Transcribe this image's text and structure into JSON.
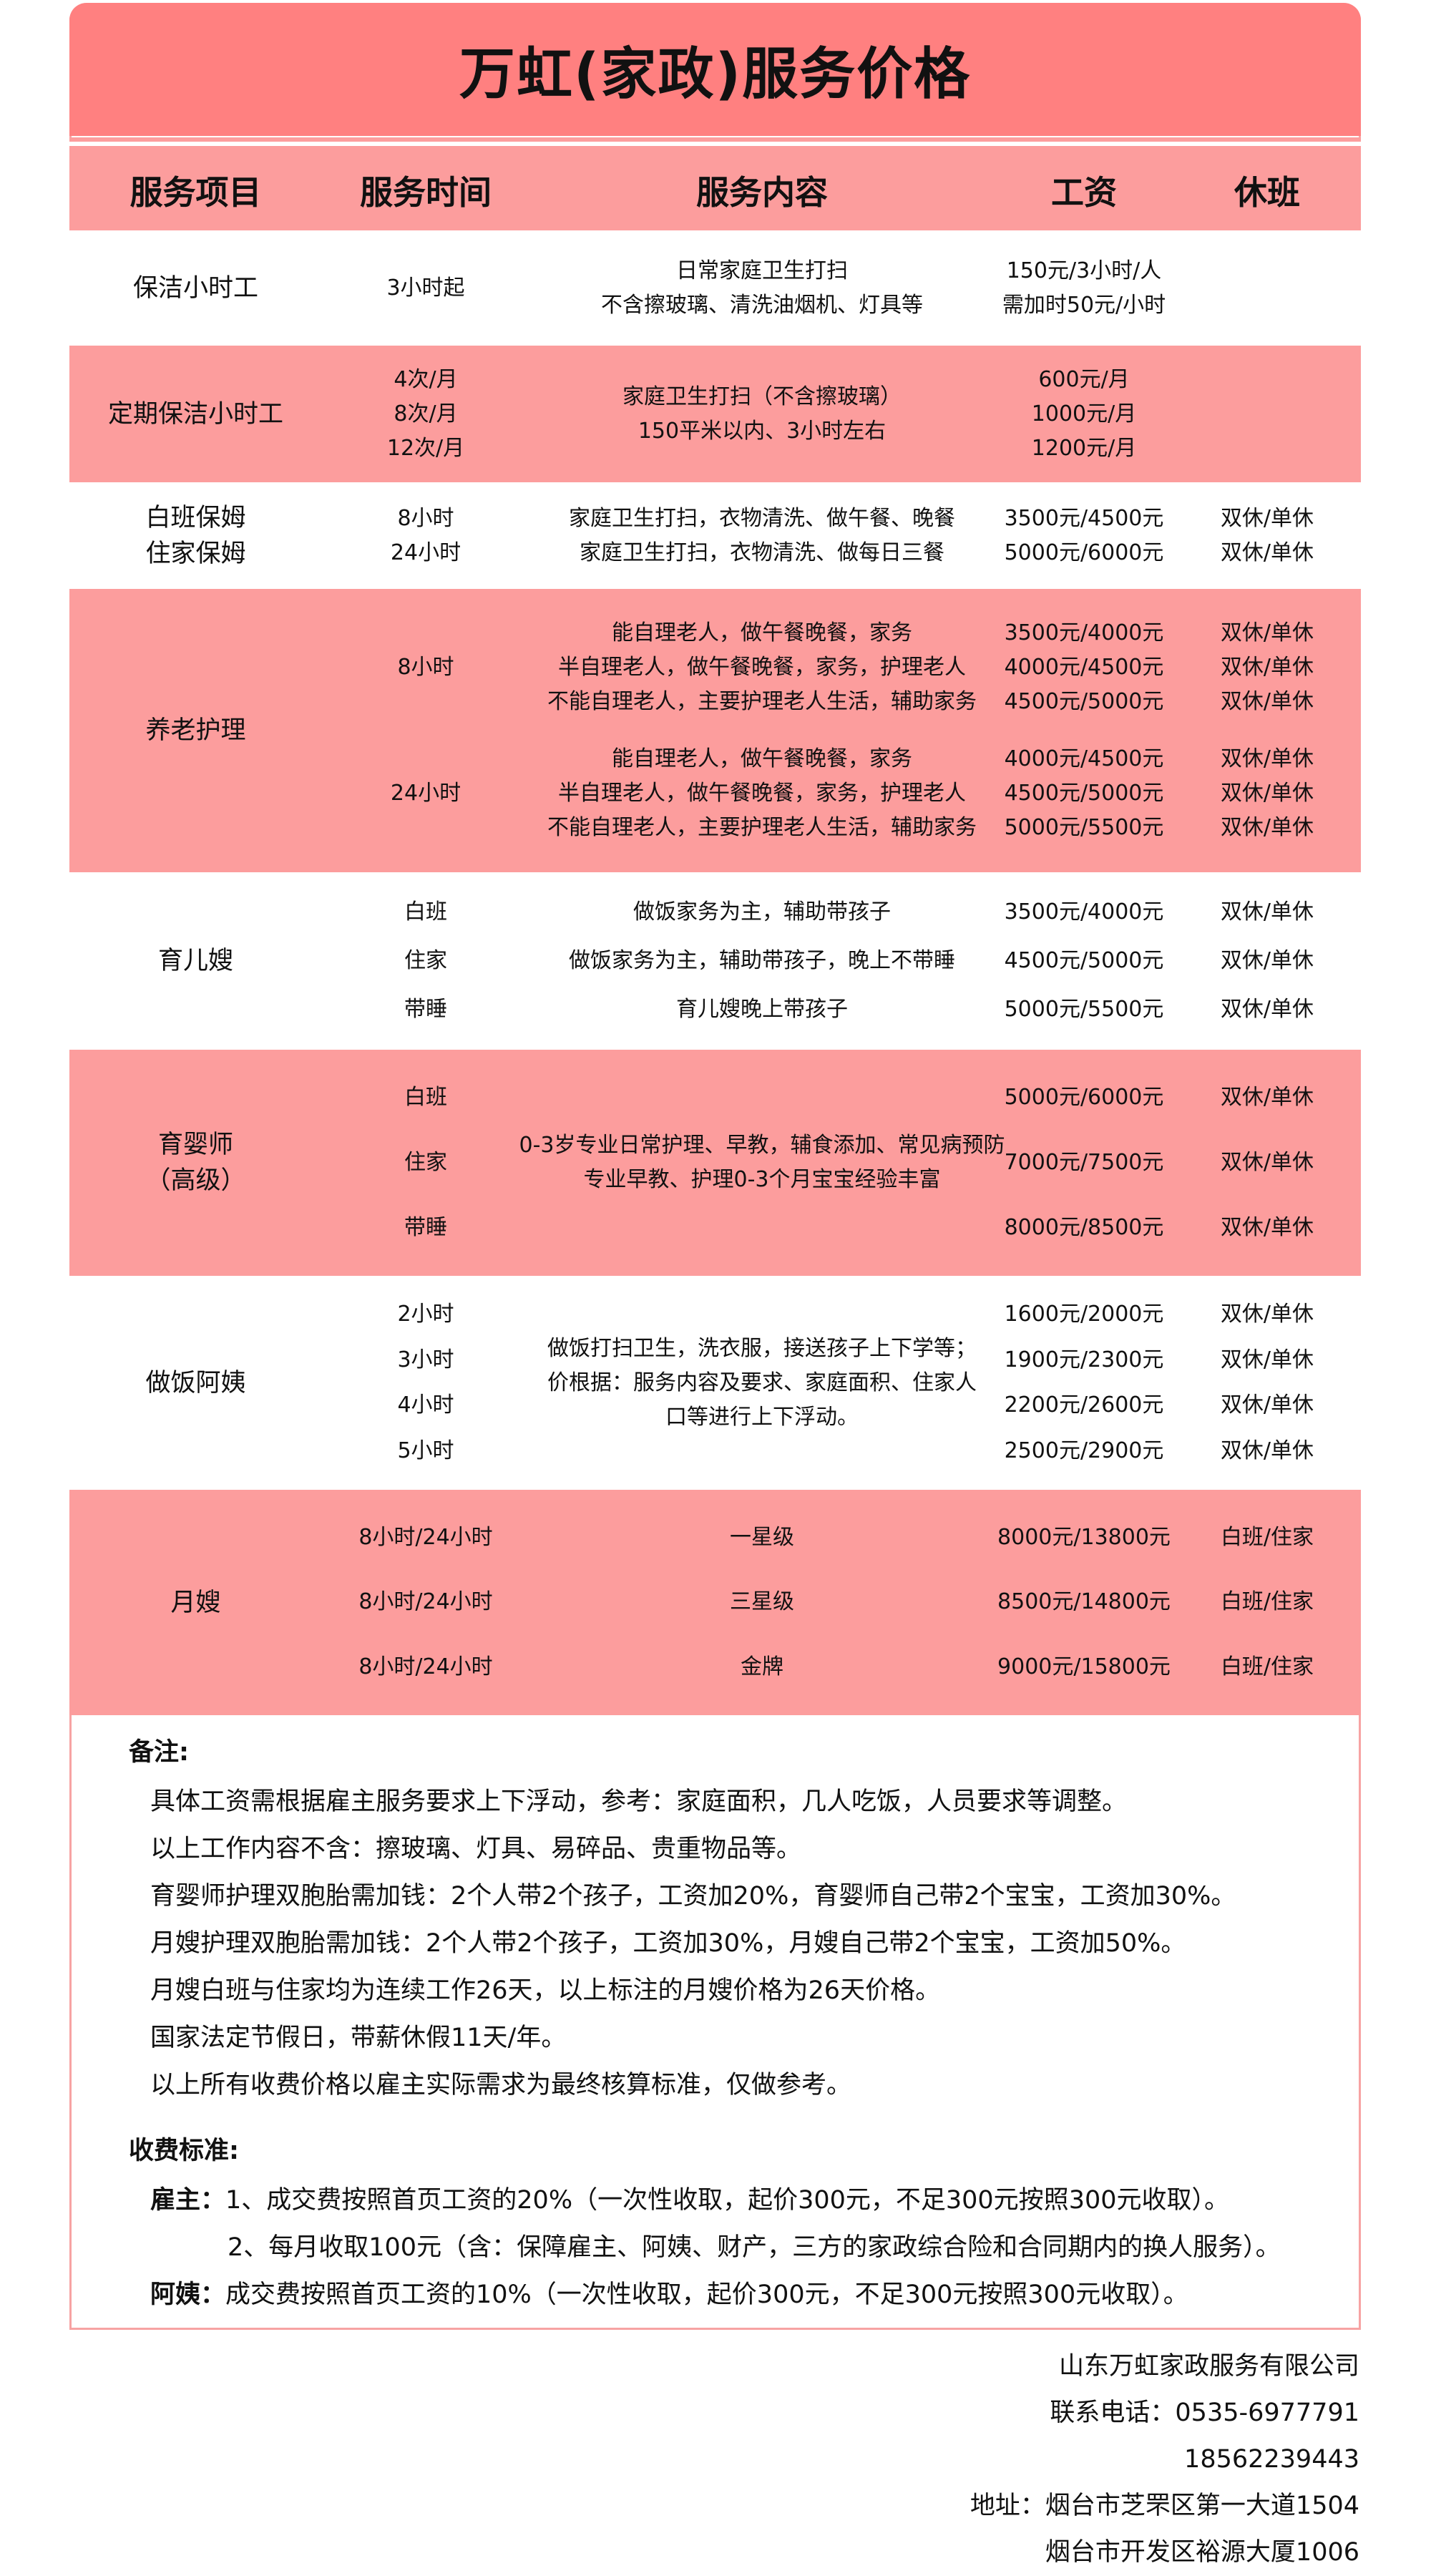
{
  "title": "万虹(家政)服务价格",
  "colors": {
    "title_band": "#ff8080",
    "pink_row": "#fc9d9d",
    "border": "#f7a3a3"
  },
  "headers": [
    "服务项目",
    "服务时间",
    "服务内容",
    "工资",
    "休班"
  ],
  "rows": [
    {
      "item": [
        [
          "保洁小时工"
        ]
      ],
      "time": [
        [
          "3小时起"
        ]
      ],
      "content": [
        [
          "日常家庭卫生打扫",
          "不含擦玻璃、清洗油烟机、灯具等"
        ]
      ],
      "salary": [
        [
          "150元/3小时/人",
          "需加时50元/小时"
        ]
      ],
      "rest": [
        []
      ]
    },
    {
      "item": [
        [
          "定期保洁小时工"
        ]
      ],
      "time": [
        [
          "4次/月",
          "8次/月",
          "12次/月"
        ]
      ],
      "content": [
        [
          "家庭卫生打扫（不含擦玻璃）",
          "150平米以内、3小时左右"
        ]
      ],
      "salary": [
        [
          "600元/月",
          "1000元/月",
          "1200元/月"
        ]
      ],
      "rest": [
        []
      ]
    },
    {
      "item": [
        [
          "白班保姆",
          "住家保姆"
        ]
      ],
      "time": [
        [
          "8小时",
          "24小时"
        ]
      ],
      "content": [
        [
          "家庭卫生打扫，衣物清洗、做午餐、晚餐",
          "家庭卫生打扫，衣物清洗、做每日三餐"
        ]
      ],
      "salary": [
        [
          "3500元/4500元",
          "5000元/6000元"
        ]
      ],
      "rest": [
        [
          "双休/单休",
          "双休/单休"
        ]
      ]
    },
    {
      "item": [
        [
          "养老护理"
        ]
      ],
      "time": [
        [
          "8小时"
        ],
        [
          "24小时"
        ]
      ],
      "content": [
        [
          "能自理老人，做午餐晚餐，家务",
          "半自理老人，做午餐晚餐，家务，护理老人",
          "不能自理老人，主要护理老人生活，辅助家务"
        ],
        [
          "能自理老人，做午餐晚餐，家务",
          "半自理老人，做午餐晚餐，家务，护理老人",
          "不能自理老人，主要护理老人生活，辅助家务"
        ]
      ],
      "salary": [
        [
          "3500元/4000元",
          "4000元/4500元",
          "4500元/5000元"
        ],
        [
          "4000元/4500元",
          "4500元/5000元",
          "5000元/5500元"
        ]
      ],
      "rest": [
        [
          "双休/单休",
          "双休/单休",
          "双休/单休"
        ],
        [
          "双休/单休",
          "双休/单休",
          "双休/单休"
        ]
      ]
    },
    {
      "item": [
        [
          "育儿嫂"
        ]
      ],
      "time": [
        [
          "白班"
        ],
        [
          "住家"
        ],
        [
          "带睡"
        ]
      ],
      "content": [
        [
          "做饭家务为主，辅助带孩子"
        ],
        [
          "做饭家务为主，辅助带孩子，晚上不带睡"
        ],
        [
          "育儿嫂晚上带孩子"
        ]
      ],
      "salary": [
        [
          "3500元/4000元"
        ],
        [
          "4500元/5000元"
        ],
        [
          "5000元/5500元"
        ]
      ],
      "rest": [
        [
          "双休/单休"
        ],
        [
          "双休/单休"
        ],
        [
          "双休/单休"
        ]
      ]
    },
    {
      "item": [
        [
          "育婴师",
          "（高级）"
        ]
      ],
      "time": [
        [
          "白班"
        ],
        [
          "住家"
        ],
        [
          "带睡"
        ]
      ],
      "content": [
        [
          "0-3岁专业日常护理、早教，辅食添加、常见病预防",
          "专业早教、护理0-3个月宝宝经验丰富"
        ]
      ],
      "salary": [
        [
          "5000元/6000元"
        ],
        [
          "7000元/7500元"
        ],
        [
          "8000元/8500元"
        ]
      ],
      "rest": [
        [
          "双休/单休"
        ],
        [
          "双休/单休"
        ],
        [
          "双休/单休"
        ]
      ]
    },
    {
      "item": [
        [
          "做饭阿姨"
        ]
      ],
      "time": [
        [
          "2小时"
        ],
        [
          "3小时"
        ],
        [
          "4小时"
        ],
        [
          "5小时"
        ]
      ],
      "content": [
        [
          "做饭打扫卫生，洗衣服，接送孩子上下学等；",
          "价根据：服务内容及要求、家庭面积、住家人",
          "口等进行上下浮动。"
        ]
      ],
      "salary": [
        [
          "1600元/2000元"
        ],
        [
          "1900元/2300元"
        ],
        [
          "2200元/2600元"
        ],
        [
          "2500元/2900元"
        ]
      ],
      "rest": [
        [
          "双休/单休"
        ],
        [
          "双休/单休"
        ],
        [
          "双休/单休"
        ],
        [
          "双休/单休"
        ]
      ]
    },
    {
      "item": [
        [
          "月嫂"
        ]
      ],
      "time": [
        [
          "8小时/24小时"
        ],
        [
          "8小时/24小时"
        ],
        [
          "8小时/24小时"
        ]
      ],
      "content": [
        [
          "一星级"
        ],
        [
          "三星级"
        ],
        [
          "金牌"
        ]
      ],
      "salary": [
        [
          "8000元/13800元"
        ],
        [
          "8500元/14800元"
        ],
        [
          "9000元/15800元"
        ]
      ],
      "rest": [
        [
          "白班/住家"
        ],
        [
          "白班/住家"
        ],
        [
          "白班/住家"
        ]
      ]
    }
  ],
  "notes": {
    "heading": "备注:",
    "items": [
      "具体工资需根据雇主服务要求上下浮动，参考：家庭面积，几人吃饭，人员要求等调整。",
      "以上工作内容不含：擦玻璃、灯具、易碎品、贵重物品等。",
      "育婴师护理双胞胎需加钱：2个人带2个孩子，工资加20%，育婴师自己带2个宝宝，工资加30%。",
      "月嫂护理双胞胎需加钱：2个人带2个孩子，工资加30%，月嫂自己带2个宝宝，工资加50%。",
      "月嫂白班与住家均为连续工作26天，以上标注的月嫂价格为26天价格。",
      "国家法定节假日，带薪休假11天/年。",
      "以上所有收费价格以雇主实际需求为最终核算标准，仅做参考。"
    ]
  },
  "fees": {
    "heading": "收费标准:",
    "employer_label": "雇主：",
    "employer_1": "1、成交费按照首页工资的20%（一次性收取，起价300元，不足300元按照300元收取）。",
    "employer_2": "2、每月收取100元（含：保障雇主、阿姨、财产，三方的家政综合险和合同期内的换人服务）。",
    "worker_label": "阿姨：",
    "worker_1": "成交费按照首页工资的10%（一次性收取，起价300元，不足300元按照300元收取）。"
  },
  "footer": {
    "company": "山东万虹家政服务有限公司",
    "phone": "联系电话：0535-6977791",
    "mobile": "18562239443",
    "address_1": "地址：烟台市芝罘区第一大道1504",
    "address_2": "烟台市开发区裕源大厦1006"
  }
}
